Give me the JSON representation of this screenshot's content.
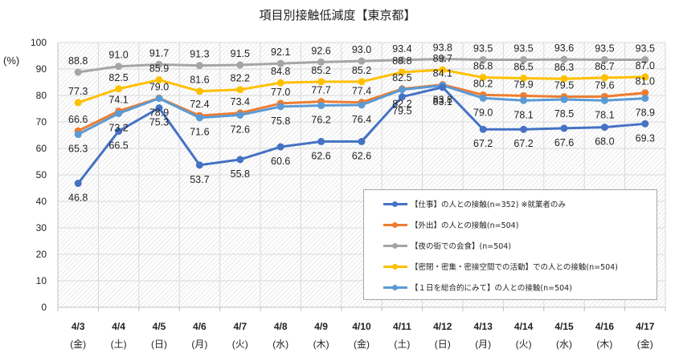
{
  "chart_data": {
    "type": "line",
    "title": "項目別接触低減度【東京都】",
    "ylabel": "(%)",
    "xlabel": "",
    "ylim": [
      0,
      100
    ],
    "yticks": [
      0,
      10,
      20,
      30,
      40,
      50,
      60,
      70,
      80,
      90,
      100
    ],
    "grid": true,
    "legend_position": "bottom-right (inside plot)",
    "categories": [
      {
        "date": "4/3",
        "day": "(金)"
      },
      {
        "date": "4/4",
        "day": "(土)"
      },
      {
        "date": "4/5",
        "day": "(日)"
      },
      {
        "date": "4/6",
        "day": "(月)"
      },
      {
        "date": "4/7",
        "day": "(火)"
      },
      {
        "date": "4/8",
        "day": "(水)"
      },
      {
        "date": "4/9",
        "day": "(木)"
      },
      {
        "date": "4/10",
        "day": "(金)"
      },
      {
        "date": "4/11",
        "day": "(土)"
      },
      {
        "date": "4/12",
        "day": "(日)"
      },
      {
        "date": "4/13",
        "day": "(月)"
      },
      {
        "date": "4/14",
        "day": "(火)"
      },
      {
        "date": "4/15",
        "day": "(水)"
      },
      {
        "date": "4/16",
        "day": "(木)"
      },
      {
        "date": "4/17",
        "day": "(金)"
      }
    ],
    "series": [
      {
        "name": "【仕事】の人との接触(n=352) ※就業者のみ",
        "color": "#4472c4",
        "values": [
          46.8,
          66.5,
          75.3,
          53.7,
          55.8,
          60.6,
          62.6,
          62.6,
          79.5,
          83.1,
          67.2,
          67.2,
          67.6,
          68.0,
          69.3
        ],
        "label_pos": "below"
      },
      {
        "name": "【外出】の人との接触(n=504)",
        "color": "#ed7d31",
        "values": [
          66.6,
          74.1,
          79.0,
          72.4,
          73.4,
          77.0,
          77.7,
          77.4,
          82.5,
          84.1,
          80.2,
          79.9,
          79.5,
          79.6,
          81.0
        ],
        "label_pos": "above"
      },
      {
        "name": "【夜の街での会食】(n=504)",
        "color": "#a5a5a5",
        "values": [
          88.8,
          91.0,
          91.7,
          91.3,
          91.5,
          92.1,
          92.6,
          93.0,
          93.4,
          93.8,
          93.5,
          93.5,
          93.6,
          93.5,
          93.5
        ],
        "label_pos": "above"
      },
      {
        "name": "【密閉・密集・密接空間での活動】での人との接触(n=504)",
        "color": "#ffc000",
        "values": [
          77.3,
          82.5,
          85.9,
          81.6,
          82.2,
          84.8,
          85.2,
          85.2,
          88.8,
          89.7,
          86.8,
          86.5,
          86.3,
          86.7,
          87.0
        ],
        "label_pos": "above"
      },
      {
        "name": "【１日を総合的にみて】の人との接触(n=504)",
        "color": "#5b9bd5",
        "values": [
          65.3,
          73.2,
          78.9,
          71.6,
          72.6,
          75.8,
          76.2,
          76.4,
          82.2,
          83.8,
          79.0,
          78.1,
          78.5,
          78.1,
          78.9
        ],
        "label_pos": "below"
      }
    ]
  }
}
